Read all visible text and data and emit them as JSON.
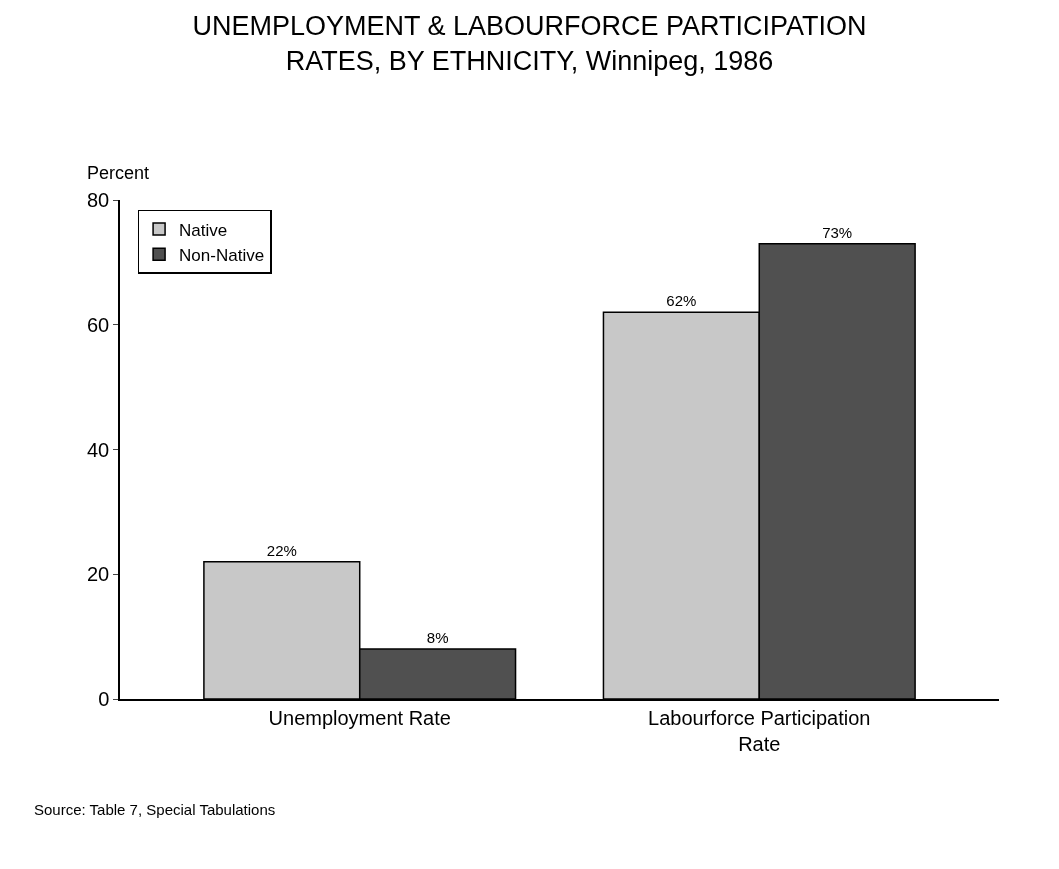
{
  "chart_data": {
    "type": "bar",
    "title": "UNEMPLOYMENT & LABOURFORCE PARTICIPATION RATES, BY ETHNICITY, Winnipeg, 1986",
    "ylabel": "Percent",
    "categories": [
      "Unemployment Rate",
      "Labourforce Participation Rate"
    ],
    "series": [
      {
        "name": "Native",
        "color": "#c8c8c8",
        "values": [
          22,
          62
        ],
        "value_labels": [
          "22%",
          "62%"
        ]
      },
      {
        "name": "Non-Native",
        "color": "#505050",
        "values": [
          8,
          73
        ],
        "value_labels": [
          "8%",
          "73%"
        ]
      }
    ],
    "ylim": [
      0,
      80
    ],
    "yticks": [
      0,
      20,
      40,
      60,
      80
    ],
    "grid": false,
    "legend": "top left",
    "annotations": [
      "Source: Table 7, Special Tabulations"
    ]
  }
}
